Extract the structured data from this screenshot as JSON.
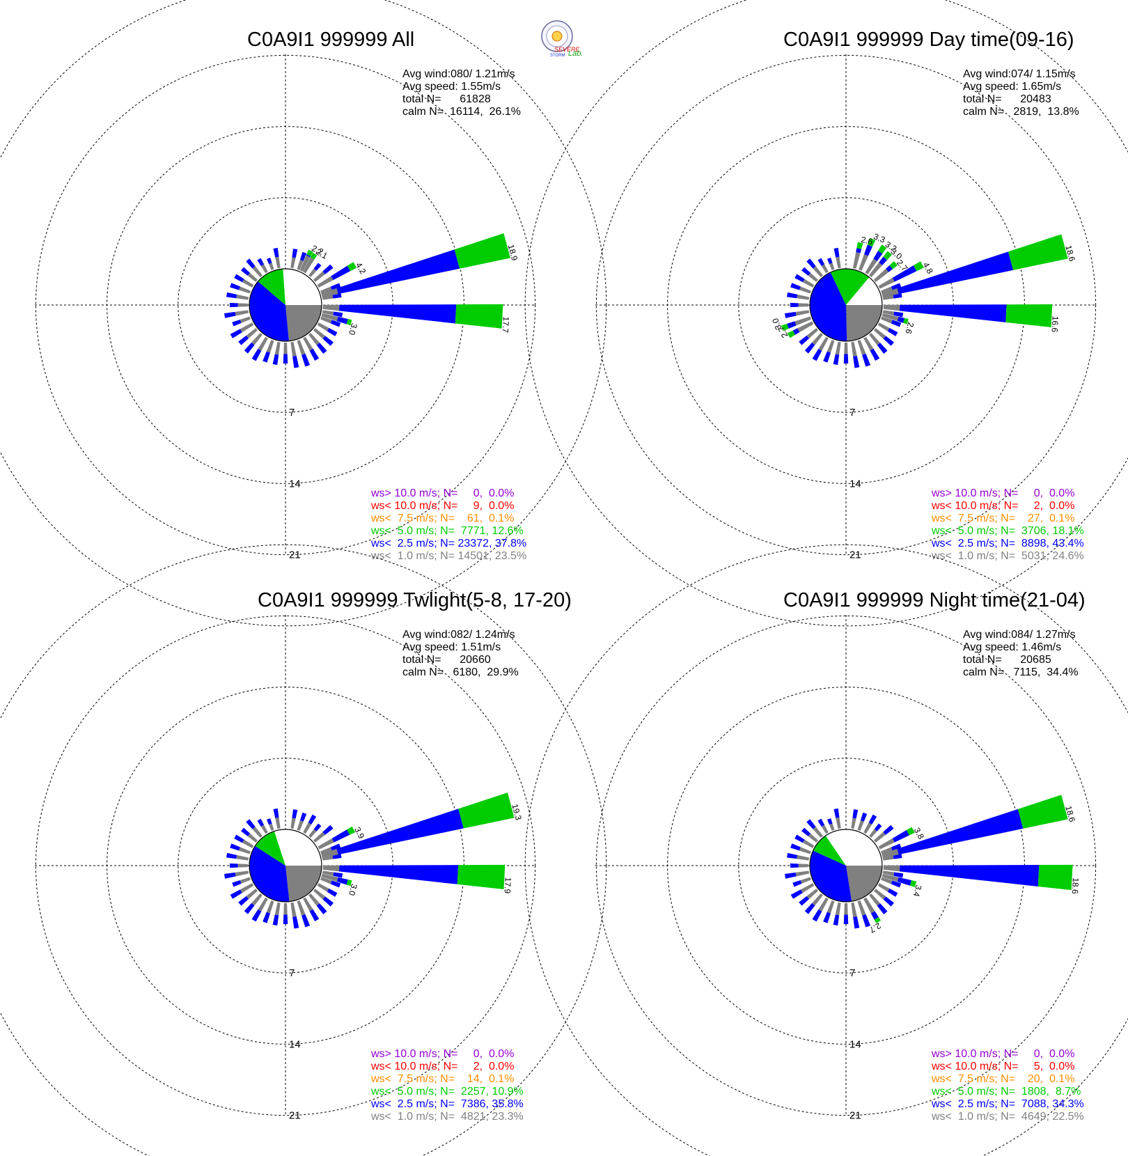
{
  "logo": {
    "top_text": "SEVERE",
    "bottom_text": "STORM",
    "lab_text": "Lab."
  },
  "colors": {
    "gray": "#808080",
    "blue": "#0000ff",
    "green": "#00cc00",
    "orange": "#ff8c00",
    "red": "#ff0000",
    "purple": "#9400d3",
    "grid": "#000000"
  },
  "chart_data": [
    {
      "type": "windrose",
      "title": "C0A9I1 999999 All",
      "stats": [
        "Avg wind:080/ 1.21m/s",
        "Avg speed: 1.55m/s",
        "total N=      61828",
        "calm N=  16114,  26.1%"
      ],
      "ring_labels": [
        "7",
        "14",
        "21"
      ],
      "rings": [
        7,
        14,
        21
      ],
      "pie": [
        {
          "cls": "gray",
          "pct": 23.5
        },
        {
          "cls": "blue",
          "pct": 37.8
        },
        {
          "cls": "green",
          "pct": 12.6
        }
      ],
      "long_bars": [
        {
          "dir": 75,
          "total": 18.9,
          "blue": 13.8,
          "label": "18.9"
        },
        {
          "dir": 93,
          "total": 17.7,
          "blue": 13.1,
          "label": "17.7"
        },
        {
          "dir": 60,
          "total": 4.2,
          "blue": 3.5,
          "label": "4.2"
        },
        {
          "dir": 105,
          "total": 3.0,
          "blue": 2.6,
          "label": "3.0"
        },
        {
          "dir": 30,
          "total": 2.1,
          "blue": 1.6,
          "label": "2.1"
        },
        {
          "dir": 25,
          "total": 2.2,
          "blue": 1.7,
          "label": "2.2"
        }
      ],
      "legend": [
        {
          "cls": "purple",
          "text": "ws> 10.0 m/s; N=     0,  0.0%"
        },
        {
          "cls": "red",
          "text": "ws< 10.0 m/s; N=     9,  0.0%"
        },
        {
          "cls": "orange",
          "text": "ws<  7.5 m/s; N=    61,  0.1%"
        },
        {
          "cls": "green",
          "text": "ws<  5.0 m/s; N=  7771, 12.6%"
        },
        {
          "cls": "blue",
          "text": "ws<  2.5 m/s; N= 23372, 37.8%"
        },
        {
          "cls": "gray",
          "text": "ws<  1.0 m/s; N= 14501, 23.5%"
        }
      ]
    },
    {
      "type": "windrose",
      "title": "C0A9I1 999999 Day time(09-16)",
      "stats": [
        "Avg wind:074/ 1.15m/s",
        "Avg speed: 1.65m/s",
        "total N=      20483",
        "calm N=   2819,  13.8%"
      ],
      "ring_labels": [
        "7",
        "14",
        "21"
      ],
      "rings": [
        7,
        14,
        21
      ],
      "pie": [
        {
          "cls": "gray",
          "pct": 24.6
        },
        {
          "cls": "blue",
          "pct": 43.4
        },
        {
          "cls": "green",
          "pct": 18.1
        }
      ],
      "long_bars": [
        {
          "dir": 75,
          "total": 18.6,
          "blue": 13.1,
          "label": "18.6"
        },
        {
          "dir": 93,
          "total": 16.6,
          "blue": 12.1,
          "label": "16.6"
        },
        {
          "dir": 62,
          "total": 4.8,
          "blue": 4.0,
          "label": "4.8"
        },
        {
          "dir": 105,
          "total": 2.6,
          "blue": 2.2,
          "label": "2.6"
        },
        {
          "dir": 50,
          "total": 2.7,
          "blue": 2.1,
          "label": "2.7"
        },
        {
          "dir": 40,
          "total": 3.0,
          "blue": 2.3,
          "label": "3.0"
        },
        {
          "dir": 33,
          "total": 3.2,
          "blue": 2.5,
          "label": "3.2"
        },
        {
          "dir": 22,
          "total": 3.3,
          "blue": 2.6,
          "label": "3.3"
        },
        {
          "dir": 13,
          "total": 2.6,
          "blue": 2.0,
          "label": "2.6"
        },
        {
          "dir": 250,
          "total": 3.0,
          "blue": 2.4,
          "label": "3.0"
        },
        {
          "dir": 242,
          "total": 2.7,
          "blue": 2.1,
          "label": "2.7"
        }
      ],
      "legend": [
        {
          "cls": "purple",
          "text": "ws> 10.0 m/s; N=     0,  0.0%"
        },
        {
          "cls": "red",
          "text": "ws< 10.0 m/s; N=     2,  0.0%"
        },
        {
          "cls": "orange",
          "text": "ws<  7.5 m/s; N=    27,  0.1%"
        },
        {
          "cls": "green",
          "text": "ws<  5.0 m/s; N=  3706, 18.1%"
        },
        {
          "cls": "blue",
          "text": "ws<  2.5 m/s; N=  8898, 43.4%"
        },
        {
          "cls": "gray",
          "text": "ws<  1.0 m/s; N=  5031, 24.6%"
        }
      ]
    },
    {
      "type": "windrose",
      "title": "C0A9I1 999999 Twlight(5-8, 17-20)",
      "stats": [
        "Avg wind:082/ 1.24m/s",
        "Avg speed: 1.51m/s",
        "total N=      20660",
        "calm N=   6180,  29.9%"
      ],
      "ring_labels": [
        "7",
        "14",
        "21"
      ],
      "rings": [
        7,
        14,
        21
      ],
      "pie": [
        {
          "cls": "gray",
          "pct": 23.3
        },
        {
          "cls": "blue",
          "pct": 35.8
        },
        {
          "cls": "green",
          "pct": 10.9
        }
      ],
      "long_bars": [
        {
          "dir": 75,
          "total": 19.3,
          "blue": 14.2,
          "label": "19.3"
        },
        {
          "dir": 93,
          "total": 17.9,
          "blue": 13.3,
          "label": "17.9"
        },
        {
          "dir": 62,
          "total": 3.9,
          "blue": 3.3,
          "label": "3.9"
        },
        {
          "dir": 105,
          "total": 3.0,
          "blue": 2.6,
          "label": "3.0"
        }
      ],
      "legend": [
        {
          "cls": "purple",
          "text": "ws> 10.0 m/s; N=     0,  0.0%"
        },
        {
          "cls": "red",
          "text": "ws< 10.0 m/s; N=     2,  0.0%"
        },
        {
          "cls": "orange",
          "text": "ws<  7.5 m/s; N=    14,  0.1%"
        },
        {
          "cls": "green",
          "text": "ws<  5.0 m/s; N=  2257, 10.9%"
        },
        {
          "cls": "blue",
          "text": "ws<  2.5 m/s; N=  7386, 35.8%"
        },
        {
          "cls": "gray",
          "text": "ws<  1.0 m/s; N=  4821, 23.3%"
        }
      ]
    },
    {
      "type": "windrose",
      "title": "C0A9I1 999999 Night time(21-04)",
      "stats": [
        "Avg wind:084/ 1.27m/s",
        "Avg speed: 1.46m/s",
        "total N=      20685",
        "calm N=   7115,  34.4%"
      ],
      "ring_labels": [
        "7",
        "14",
        "21"
      ],
      "rings": [
        7,
        14,
        21
      ],
      "pie": [
        {
          "cls": "gray",
          "pct": 22.5
        },
        {
          "cls": "blue",
          "pct": 34.3
        },
        {
          "cls": "green",
          "pct": 8.7
        }
      ],
      "long_bars": [
        {
          "dir": 75,
          "total": 18.6,
          "blue": 14.1,
          "label": "18.6"
        },
        {
          "dir": 93,
          "total": 18.6,
          "blue": 15.3,
          "label": "18.6"
        },
        {
          "dir": 62,
          "total": 3.8,
          "blue": 3.2,
          "label": "3.8"
        },
        {
          "dir": 105,
          "total": 3.4,
          "blue": 2.9,
          "label": "3.4"
        },
        {
          "dir": 150,
          "total": 2.7,
          "blue": 2.3,
          "label": "2.7"
        }
      ],
      "legend": [
        {
          "cls": "purple",
          "text": "ws> 10.0 m/s; N=     0,  0.0%"
        },
        {
          "cls": "red",
          "text": "ws< 10.0 m/s; N=     5,  0.0%"
        },
        {
          "cls": "orange",
          "text": "ws<  7.5 m/s; N=    20,  0.1%"
        },
        {
          "cls": "green",
          "text": "ws<  5.0 m/s; N=  1808,  8.7%"
        },
        {
          "cls": "blue",
          "text": "ws<  2.5 m/s; N=  7088, 34.3%"
        },
        {
          "cls": "gray",
          "text": "ws<  1.0 m/s; N=  4649, 22.5%"
        }
      ]
    }
  ]
}
